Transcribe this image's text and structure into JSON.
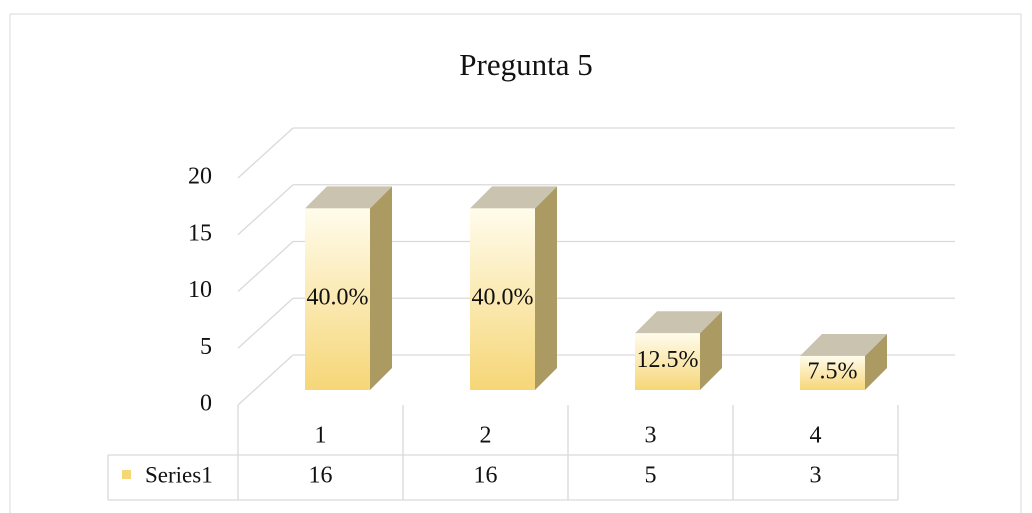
{
  "chart_data": {
    "type": "bar3d",
    "title": "Pregunta 5",
    "categories": [
      "1",
      "2",
      "3",
      "4"
    ],
    "series": [
      {
        "name": "Series1",
        "color": "#f6d677",
        "values": [
          16,
          16,
          5,
          3
        ]
      }
    ],
    "data_labels": [
      "40.0%",
      "40.0%",
      "12.5%",
      "7.5%"
    ],
    "ylim": [
      0,
      20
    ],
    "yticks": [
      0,
      5,
      10,
      15,
      20
    ],
    "grid": true
  }
}
